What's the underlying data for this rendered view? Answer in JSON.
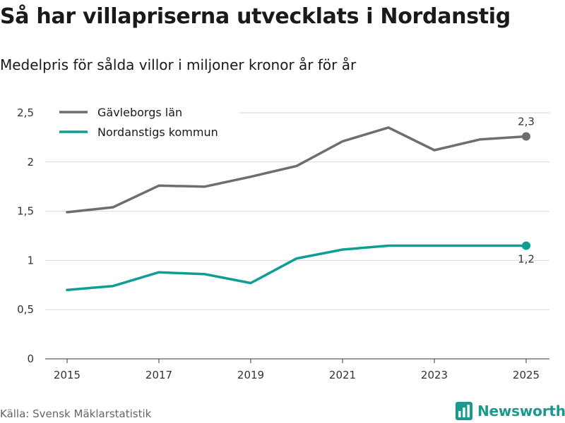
{
  "title": "Så har villapriserna utvecklats i Nordanstig",
  "subtitle": "Medelpris för sålda villor i miljoner kronor år för år",
  "source": "Källa: Svensk Mäklarstatistik",
  "brand": {
    "name": "Newsworthy",
    "icon": "bar-chart-logo-icon"
  },
  "colors": {
    "gavleborg": "#6e6d73",
    "nordanstig": "#0e9e94",
    "brand": "#1a9a8c",
    "grid": "#d9d9d9"
  },
  "chart_data": {
    "type": "line",
    "title": "Så har villapriserna utvecklats i Nordanstig",
    "xlabel": "",
    "ylabel": "",
    "x": [
      2015,
      2016,
      2017,
      2018,
      2019,
      2020,
      2021,
      2022,
      2023,
      2024,
      2025
    ],
    "x_ticks": [
      2015,
      2017,
      2019,
      2021,
      2023,
      2025
    ],
    "x_tick_labels": [
      "2015",
      "2017",
      "2019",
      "2021",
      "2023",
      "2025"
    ],
    "ylim": [
      0,
      2.5
    ],
    "y_ticks": [
      0,
      0.5,
      1,
      1.5,
      2,
      2.5
    ],
    "y_tick_labels": [
      "0",
      "0,5",
      "1",
      "1,5",
      "2",
      "2,5"
    ],
    "grid": true,
    "legend_position": "top-left",
    "series": [
      {
        "name": "Gävleborgs län",
        "color": "#6e6d73",
        "values": [
          1.49,
          1.54,
          1.76,
          1.75,
          1.85,
          1.96,
          2.21,
          2.35,
          2.12,
          2.23,
          2.26
        ],
        "end_label": "2,3",
        "label_position": "above"
      },
      {
        "name": "Nordanstigs kommun",
        "color": "#0e9e94",
        "values": [
          0.7,
          0.74,
          0.88,
          0.86,
          0.77,
          1.02,
          1.11,
          1.15,
          1.15,
          1.15,
          1.15
        ],
        "end_label": "1,2",
        "label_position": "below"
      }
    ]
  }
}
